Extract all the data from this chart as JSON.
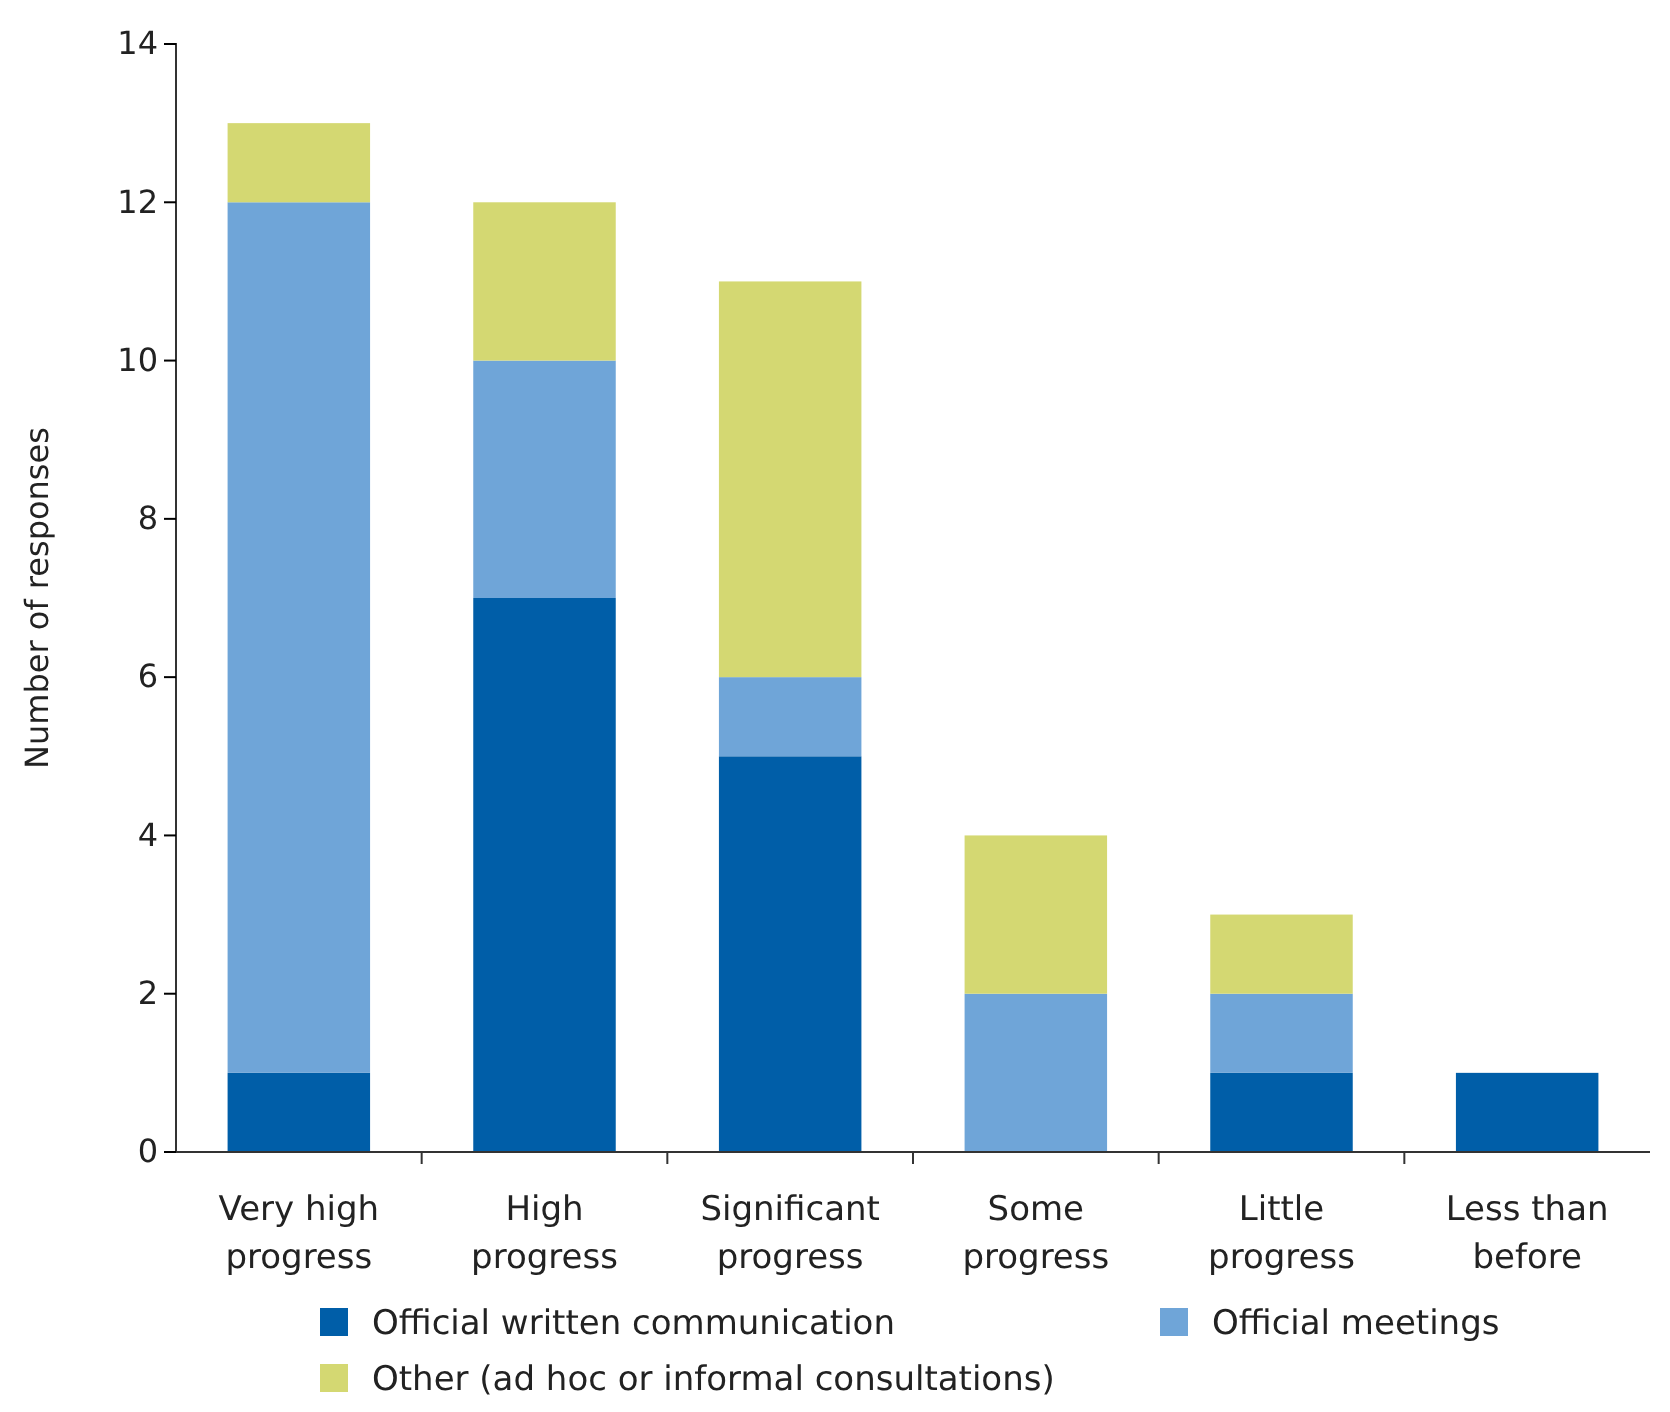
{
  "chart_data": {
    "type": "bar",
    "stacked": true,
    "ylabel": "Number of responses",
    "categories": [
      "Very high progress",
      "High progress",
      "Significant progress",
      "Some progress",
      "Little progress",
      "Less than before"
    ],
    "series": [
      {
        "name": "Official written communication",
        "color": "#005ea8",
        "values": [
          1,
          7,
          5,
          0,
          1,
          1
        ]
      },
      {
        "name": "Official meetings",
        "color": "#6fa5d8",
        "values": [
          11,
          3,
          1,
          2,
          1,
          0
        ]
      },
      {
        "name": "Other (ad hoc or informal consultations)",
        "color": "#d4d872",
        "values": [
          1,
          2,
          5,
          2,
          1,
          0
        ]
      }
    ],
    "ylim": [
      0,
      14
    ],
    "yticks": [
      0,
      2,
      4,
      6,
      8,
      10,
      12,
      14
    ],
    "legend": "bottom",
    "grid": false
  }
}
